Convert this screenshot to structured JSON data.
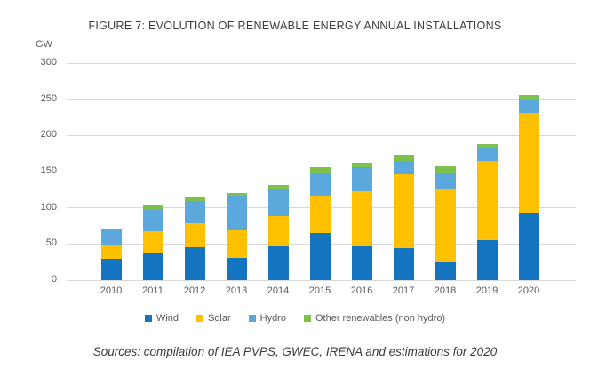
{
  "figure": {
    "title": "FIGURE 7: EVOLUTION OF RENEWABLE ENERGY ANNUAL INSTALLATIONS",
    "unit_label": "GW",
    "source_note": "Sources: compilation of IEA PVPS, GWEC, IRENA and estimations for 2020"
  },
  "colors": {
    "wind": "#1574BF",
    "solar": "#FFC000",
    "hydro": "#5BA8DC",
    "other_renewables": "#7DC14D",
    "gridline": "#D9D9D9",
    "axis_text": "#595959",
    "title_text": "#3D3D3D"
  },
  "chart_data": {
    "type": "bar",
    "stacked": true,
    "title": "FIGURE 7: EVOLUTION OF RENEWABLE ENERGY ANNUAL INSTALLATIONS",
    "xlabel": "",
    "ylabel": "GW",
    "ylim": [
      0,
      300
    ],
    "yticks": [
      0,
      50,
      100,
      150,
      200,
      250,
      300
    ],
    "grid": true,
    "legend_position": "bottom",
    "categories": [
      "2010",
      "2011",
      "2012",
      "2013",
      "2014",
      "2015",
      "2016",
      "2017",
      "2018",
      "2019",
      "2020"
    ],
    "series": [
      {
        "name": "Wind",
        "color": "#1574BF",
        "values": [
          30,
          38,
          46,
          31,
          47,
          65,
          47,
          44,
          25,
          55,
          92
        ]
      },
      {
        "name": "Solar",
        "color": "#FFC000",
        "values": [
          18,
          30,
          33,
          38,
          41,
          52,
          76,
          102,
          100,
          110,
          139
        ]
      },
      {
        "name": "Hydro",
        "color": "#5BA8DC",
        "values": [
          22,
          29,
          30,
          48,
          38,
          31,
          33,
          19,
          23,
          18,
          18
        ]
      },
      {
        "name": "Other renewables (non hydro)",
        "color": "#7DC14D",
        "values": [
          0,
          6,
          5,
          4,
          5,
          8,
          6,
          8,
          10,
          5,
          7
        ]
      }
    ],
    "totals": [
      70,
      103,
      114,
      121,
      131,
      156,
      162,
      173,
      158,
      188,
      256
    ]
  }
}
